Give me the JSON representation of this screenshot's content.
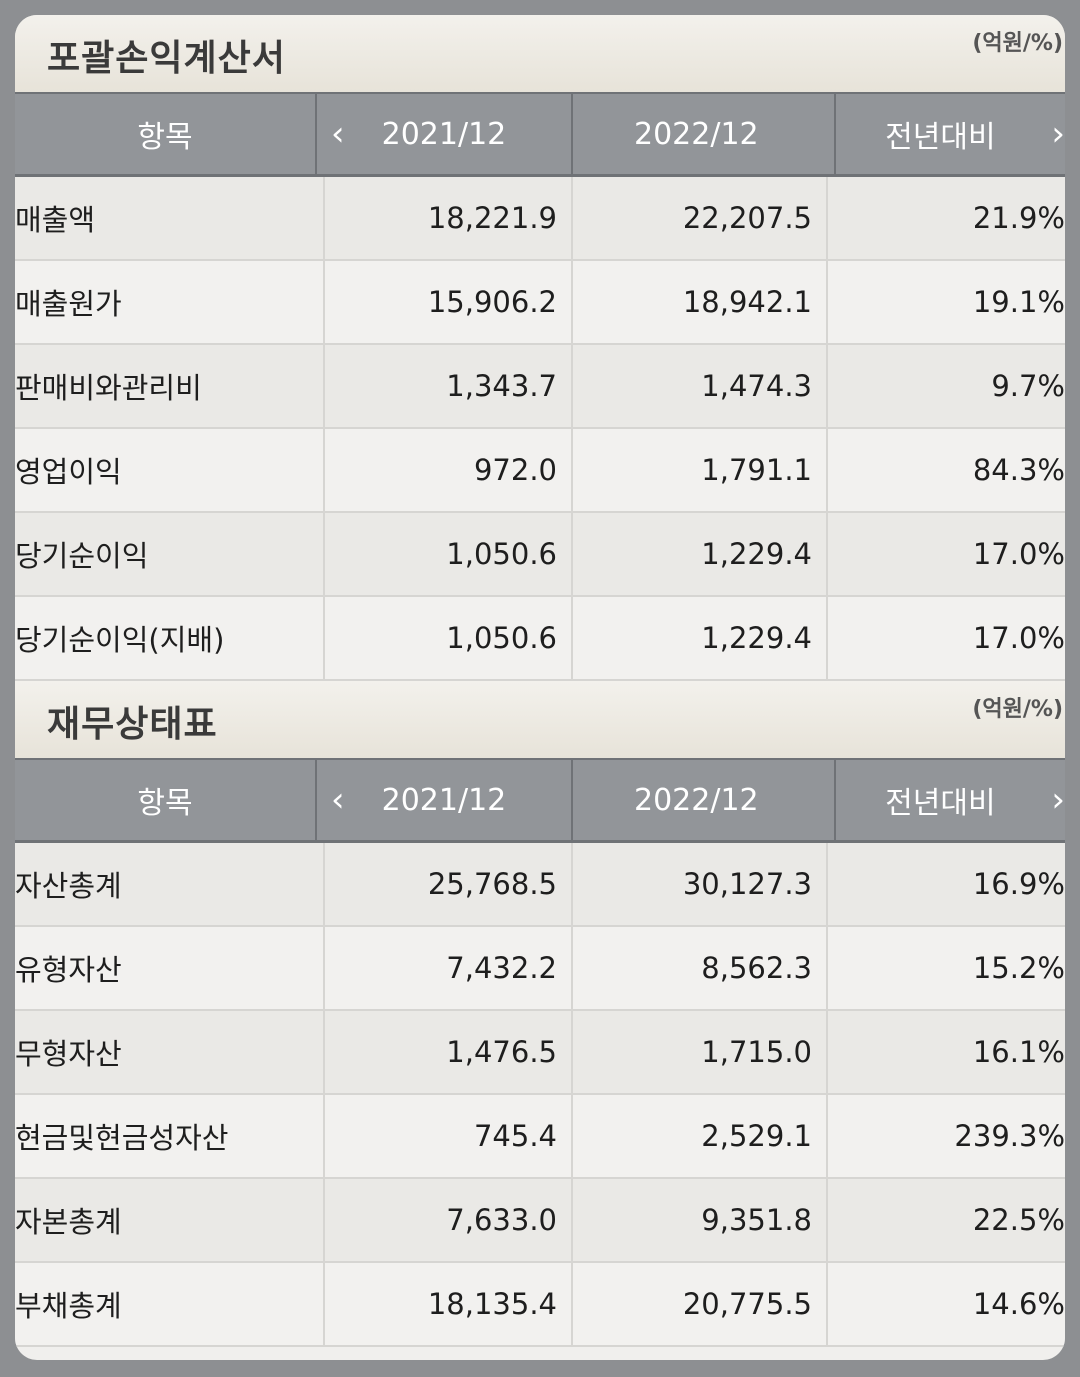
{
  "sections": [
    {
      "title": "포괄손익계산서",
      "unit": "(억원/%)",
      "headers": [
        "항목",
        "2021/12",
        "2022/12",
        "전년대비"
      ],
      "rows": [
        [
          "매출액",
          "18,221.9",
          "22,207.5",
          "21.9%"
        ],
        [
          "매출원가",
          "15,906.2",
          "18,942.1",
          "19.1%"
        ],
        [
          "판매비와관리비",
          "1,343.7",
          "1,474.3",
          "9.7%"
        ],
        [
          "영업이익",
          "972.0",
          "1,791.1",
          "84.3%"
        ],
        [
          "당기순이익",
          "1,050.6",
          "1,229.4",
          "17.0%"
        ],
        [
          "당기순이익(지배)",
          "1,050.6",
          "1,229.4",
          "17.0%"
        ]
      ]
    },
    {
      "title": "재무상태표",
      "unit": "(억원/%)",
      "headers": [
        "항목",
        "2021/12",
        "2022/12",
        "전년대비"
      ],
      "rows": [
        [
          "자산총계",
          "25,768.5",
          "30,127.3",
          "16.9%"
        ],
        [
          "유형자산",
          "7,432.2",
          "8,562.3",
          "15.2%"
        ],
        [
          "무형자산",
          "1,476.5",
          "1,715.0",
          "16.1%"
        ],
        [
          "현금및현금성자산",
          "745.4",
          "2,529.1",
          "239.3%"
        ],
        [
          "자본총계",
          "7,633.0",
          "9,351.8",
          "22.5%"
        ],
        [
          "부채총계",
          "18,135.4",
          "20,775.5",
          "14.6%"
        ]
      ]
    }
  ],
  "icons": {
    "prev": "chevron-left-icon",
    "next": "chevron-right-icon"
  }
}
